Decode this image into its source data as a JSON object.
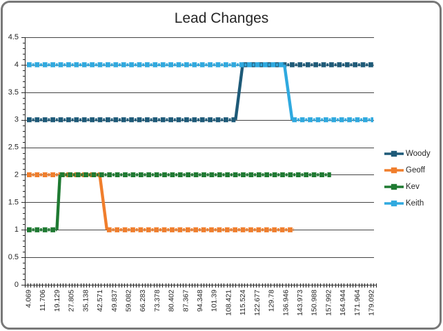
{
  "window": {
    "background_color": "#ffffff",
    "border_color": "#787878"
  },
  "chart_data": {
    "type": "line",
    "title": "Lead Changes",
    "style": "thick-dashed-lines-with-square-markers",
    "title_color": "#262626",
    "axis_color": "#262626",
    "gridline_color": "#444444",
    "grid": "horizontal-major-only",
    "y_axis": {
      "min": 0,
      "max": 4.5,
      "major_step": 0.5,
      "minor_step": 0.1,
      "tick_labels": [
        "0",
        "0.5",
        "1",
        "1.5",
        "2",
        "2.5",
        "3",
        "3.5",
        "4",
        "4.5"
      ]
    },
    "x_axis": {
      "tick_labels": [
        "4.069",
        "11.706",
        "19.129",
        "27.805",
        "35.138",
        "42.571",
        "49.837",
        "59.082",
        "66.283",
        "73.378",
        "80.402",
        "87.367",
        "94.348",
        "101.39",
        "108.421",
        "115.524",
        "122.677",
        "129.78",
        "136.946",
        "143.973",
        "150.988",
        "157.992",
        "164.944",
        "171.964",
        "179.092"
      ],
      "label_rotation_degrees": 90,
      "minor_tick_count": 120
    },
    "legend": {
      "position": "right",
      "entries": [
        "Woody",
        "Geoff",
        "Kev",
        "Keith"
      ]
    },
    "series": [
      {
        "name": "Woody",
        "color": "#1E5A78",
        "points": [
          [
            4.069,
            3
          ],
          [
            112.0,
            3
          ],
          [
            115.524,
            4
          ],
          [
            179.092,
            4
          ]
        ]
      },
      {
        "name": "Geoff",
        "color": "#F07E2C",
        "points": [
          [
            4.069,
            2
          ],
          [
            42.571,
            2
          ],
          [
            46.2,
            1
          ],
          [
            141.0,
            1
          ]
        ]
      },
      {
        "name": "Kev",
        "color": "#1F7A32",
        "points": [
          [
            4.069,
            1
          ],
          [
            19.129,
            1
          ],
          [
            21.0,
            2
          ],
          [
            159.3,
            2
          ]
        ]
      },
      {
        "name": "Keith",
        "color": "#2FA9DF",
        "points": [
          [
            4.069,
            4
          ],
          [
            136.4,
            4
          ],
          [
            140.2,
            3
          ],
          [
            179.092,
            3
          ]
        ]
      }
    ]
  }
}
